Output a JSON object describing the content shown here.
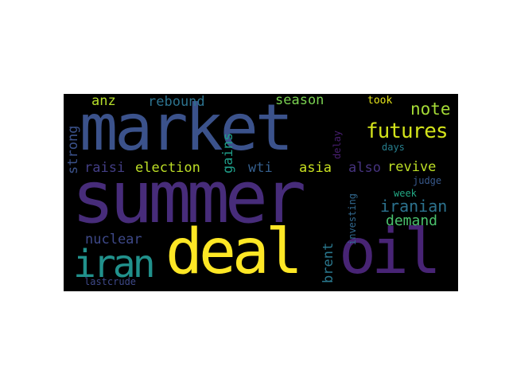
{
  "word_cloud": {
    "background_color": "#000000",
    "words": [
      {
        "id": "summer",
        "text": "summer",
        "color": "#472c7a",
        "orientation": "horizontal"
      },
      {
        "id": "market",
        "text": "market",
        "color": "#3b528b",
        "orientation": "horizontal"
      },
      {
        "id": "deal",
        "text": "deal",
        "color": "#fde725",
        "orientation": "horizontal"
      },
      {
        "id": "oil",
        "text": "oil",
        "color": "#482475",
        "orientation": "horizontal"
      },
      {
        "id": "iran",
        "text": "iran",
        "color": "#21918c",
        "orientation": "horizontal"
      },
      {
        "id": "futures",
        "text": "futures",
        "color": "#d2e21b",
        "orientation": "horizontal"
      },
      {
        "id": "note",
        "text": "note",
        "color": "#a5db36",
        "orientation": "horizontal"
      },
      {
        "id": "iranian",
        "text": "iranian",
        "color": "#2c728e",
        "orientation": "horizontal"
      },
      {
        "id": "demand",
        "text": "demand",
        "color": "#4ac16d",
        "orientation": "horizontal"
      },
      {
        "id": "revive",
        "text": "revive",
        "color": "#bddf26",
        "orientation": "horizontal"
      },
      {
        "id": "rebound",
        "text": "rebound",
        "color": "#2c728e",
        "orientation": "horizontal"
      },
      {
        "id": "season",
        "text": "season",
        "color": "#7ad151",
        "orientation": "horizontal"
      },
      {
        "id": "anz",
        "text": "anz",
        "color": "#b5de2b",
        "orientation": "horizontal"
      },
      {
        "id": "took",
        "text": "took",
        "color": "#e5e419",
        "orientation": "horizontal"
      },
      {
        "id": "election",
        "text": "election",
        "color": "#bddf26",
        "orientation": "horizontal"
      },
      {
        "id": "wti",
        "text": "wti",
        "color": "#355f8d",
        "orientation": "horizontal"
      },
      {
        "id": "asia",
        "text": "asia",
        "color": "#c8e020",
        "orientation": "horizontal"
      },
      {
        "id": "also",
        "text": "also",
        "color": "#46337f",
        "orientation": "horizontal"
      },
      {
        "id": "raisi",
        "text": "raisi",
        "color": "#433e85",
        "orientation": "horizontal"
      },
      {
        "id": "nuclear",
        "text": "nuclear",
        "color": "#3e4989",
        "orientation": "horizontal"
      },
      {
        "id": "days",
        "text": "days",
        "color": "#277f8e",
        "orientation": "horizontal"
      },
      {
        "id": "judge",
        "text": "judge",
        "color": "#38598c",
        "orientation": "horizontal"
      },
      {
        "id": "week",
        "text": "week",
        "color": "#22a884",
        "orientation": "horizontal"
      },
      {
        "id": "lastcrude",
        "text": "lastcrude",
        "color": "#3e4989",
        "orientation": "horizontal"
      },
      {
        "id": "strong",
        "text": "strong",
        "color": "#3b528b",
        "orientation": "vertical"
      },
      {
        "id": "gains",
        "text": "gains",
        "color": "#1f9e89",
        "orientation": "vertical"
      },
      {
        "id": "delay",
        "text": "delay",
        "color": "#481f70",
        "orientation": "vertical"
      },
      {
        "id": "brent",
        "text": "brent",
        "color": "#2a788e",
        "orientation": "vertical"
      },
      {
        "id": "investing",
        "text": "investing",
        "color": "#31688e",
        "orientation": "vertical"
      }
    ]
  }
}
